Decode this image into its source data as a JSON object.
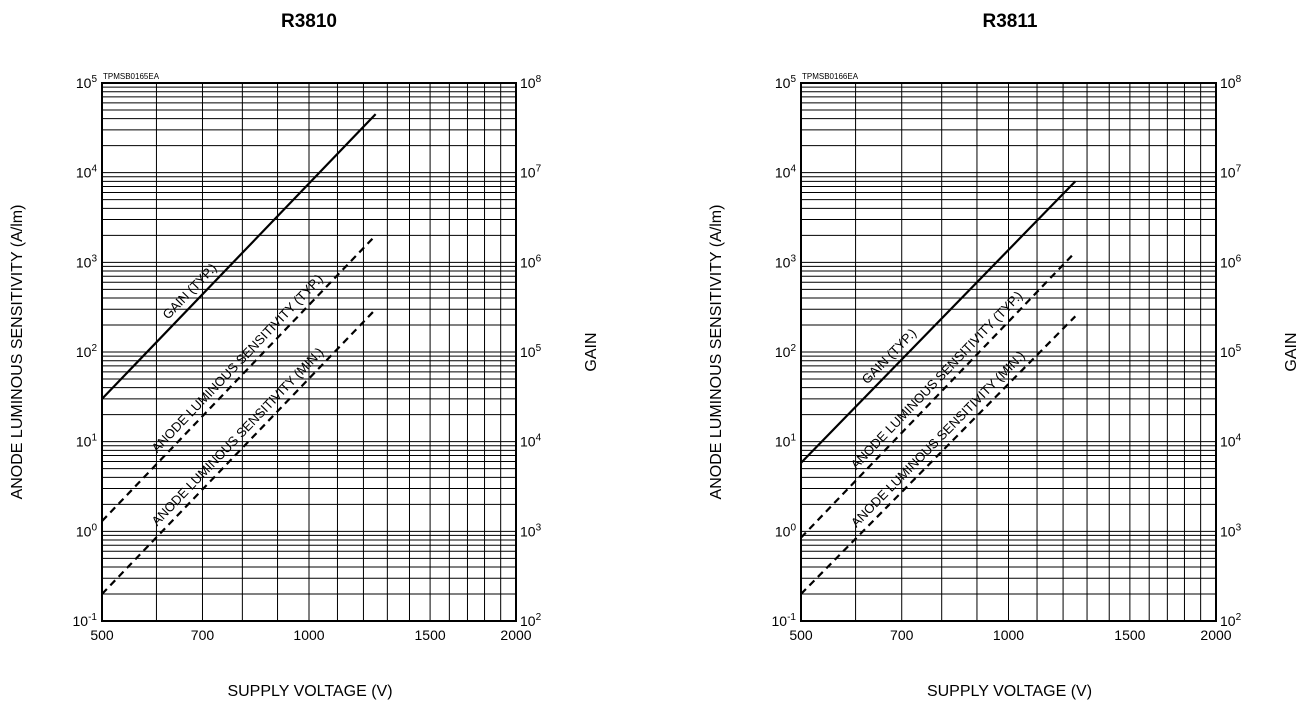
{
  "chart_data": [
    {
      "type": "line",
      "title": "R3810",
      "code": "TPMSB0165EA",
      "xlabel": "SUPPLY VOLTAGE (V)",
      "ylabel": "ANODE LUMINOUS SENSITIVITY (A/lm)",
      "y2label": "GAIN",
      "xscale": "log",
      "yscale": "log",
      "xlim": [
        500,
        2000
      ],
      "ylim": [
        0.1,
        100000
      ],
      "y2lim": [
        100,
        100000000
      ],
      "grid": true,
      "x_ticks": [
        {
          "value": 500,
          "label": "500"
        },
        {
          "value": 700,
          "label": "700"
        },
        {
          "value": 1000,
          "label": "1000"
        },
        {
          "value": 1500,
          "label": "1500"
        },
        {
          "value": 2000,
          "label": "2000"
        }
      ],
      "y_ticks": [
        {
          "value": 0.1,
          "base": "10",
          "exp": "-1"
        },
        {
          "value": 1,
          "base": "10",
          "exp": "0"
        },
        {
          "value": 10,
          "base": "10",
          "exp": "1"
        },
        {
          "value": 100,
          "base": "10",
          "exp": "2"
        },
        {
          "value": 1000,
          "base": "10",
          "exp": "3"
        },
        {
          "value": 10000,
          "base": "10",
          "exp": "4"
        },
        {
          "value": 100000,
          "base": "10",
          "exp": "5"
        }
      ],
      "y2_ticks": [
        {
          "value": 100,
          "base": "10",
          "exp": "2"
        },
        {
          "value": 1000,
          "base": "10",
          "exp": "3"
        },
        {
          "value": 10000,
          "base": "10",
          "exp": "4"
        },
        {
          "value": 100000,
          "base": "10",
          "exp": "5"
        },
        {
          "value": 1000000,
          "base": "10",
          "exp": "6"
        },
        {
          "value": 10000000,
          "base": "10",
          "exp": "7"
        },
        {
          "value": 100000000,
          "base": "10",
          "exp": "8"
        }
      ],
      "series": [
        {
          "name": "GAIN (TYP.)",
          "axis": "right",
          "style": "solid",
          "x": [
            500,
            1250
          ],
          "y": [
            30000,
            45000000
          ]
        },
        {
          "name": "ANODE LUMINOUS SENSITIVITY (TYP.)",
          "axis": "left",
          "style": "dashed",
          "x": [
            500,
            1250
          ],
          "y": [
            1.3,
            2000
          ]
        },
        {
          "name": "ANODE LUMINOUS SENSITIVITY (MIN.)",
          "axis": "left",
          "style": "dashed",
          "x": [
            500,
            1250
          ],
          "y": [
            0.2,
            300
          ]
        }
      ]
    },
    {
      "type": "line",
      "title": "R3811",
      "code": "TPMSB0166EA",
      "xlabel": "SUPPLY VOLTAGE (V)",
      "ylabel": "ANODE LUMINOUS SENSITIVITY (A/lm)",
      "y2label": "GAIN",
      "xscale": "log",
      "yscale": "log",
      "xlim": [
        500,
        2000
      ],
      "ylim": [
        0.1,
        100000
      ],
      "y2lim": [
        100,
        100000000
      ],
      "grid": true,
      "x_ticks": [
        {
          "value": 500,
          "label": "500"
        },
        {
          "value": 700,
          "label": "700"
        },
        {
          "value": 1000,
          "label": "1000"
        },
        {
          "value": 1500,
          "label": "1500"
        },
        {
          "value": 2000,
          "label": "2000"
        }
      ],
      "y_ticks": [
        {
          "value": 0.1,
          "base": "10",
          "exp": "-1"
        },
        {
          "value": 1,
          "base": "10",
          "exp": "0"
        },
        {
          "value": 10,
          "base": "10",
          "exp": "1"
        },
        {
          "value": 100,
          "base": "10",
          "exp": "2"
        },
        {
          "value": 1000,
          "base": "10",
          "exp": "3"
        },
        {
          "value": 10000,
          "base": "10",
          "exp": "4"
        },
        {
          "value": 100000,
          "base": "10",
          "exp": "5"
        }
      ],
      "y2_ticks": [
        {
          "value": 100,
          "base": "10",
          "exp": "2"
        },
        {
          "value": 1000,
          "base": "10",
          "exp": "3"
        },
        {
          "value": 10000,
          "base": "10",
          "exp": "4"
        },
        {
          "value": 100000,
          "base": "10",
          "exp": "5"
        },
        {
          "value": 1000000,
          "base": "10",
          "exp": "6"
        },
        {
          "value": 10000000,
          "base": "10",
          "exp": "7"
        },
        {
          "value": 100000000,
          "base": "10",
          "exp": "8"
        }
      ],
      "series": [
        {
          "name": "GAIN (TYP.)",
          "axis": "right",
          "style": "solid",
          "x": [
            500,
            1250
          ],
          "y": [
            5800,
            8000000
          ]
        },
        {
          "name": "ANODE LUMINOUS SENSITIVITY (TYP.)",
          "axis": "left",
          "style": "dashed",
          "x": [
            500,
            1250
          ],
          "y": [
            0.85,
            1300
          ]
        },
        {
          "name": "ANODE LUMINOUS SENSITIVITY (MIN.)",
          "axis": "left",
          "style": "dashed",
          "x": [
            500,
            1250
          ],
          "y": [
            0.2,
            250
          ]
        }
      ]
    }
  ]
}
